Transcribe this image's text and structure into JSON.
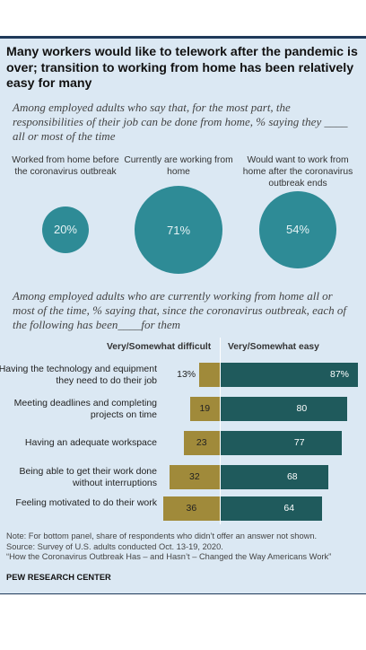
{
  "title": "Many workers would like to telework after the pandemic is over; transition to working from home has been relatively easy for many",
  "top_panel": {
    "subtitle": "Among employed adults who say that, for the most part, the responsibilities of their job can be done from home, % saying they ____ all or most of the time"
  },
  "bottom_panel": {
    "subtitle": "Among employed adults who are currently working from home all or most of the time, % saying that, since the coronavirus outbreak, each of the following has been____for them"
  },
  "chart_data": [
    {
      "type": "bubble",
      "categories": [
        "Worked from home before the coronavirus outbreak",
        "Currently are working from home",
        "Would want to work from home after the coronavirus outbreak ends"
      ],
      "values": [
        20,
        71,
        54
      ],
      "value_labels": [
        "20%",
        "71%",
        "54%"
      ],
      "unit": "%",
      "color": "#2e8b96"
    },
    {
      "type": "bar",
      "orientation": "horizontal-diverging",
      "categories": [
        "Having the technology and equipment they need to do their job",
        "Meeting deadlines and completing projects on time",
        "Having an adequate workspace",
        "Being able to get their work done without interruptions",
        "Feeling motivated to do their work"
      ],
      "series": [
        {
          "name": "Very/Somewhat difficult",
          "values": [
            13,
            19,
            23,
            32,
            36
          ],
          "labels": [
            "13%",
            "19",
            "23",
            "32",
            "36"
          ],
          "color": "#a08a3a"
        },
        {
          "name": "Very/Somewhat easy",
          "values": [
            87,
            80,
            77,
            68,
            64
          ],
          "labels": [
            "87%",
            "80",
            "77",
            "68",
            "64"
          ],
          "color": "#1f5a5c"
        }
      ],
      "legend": "top"
    }
  ],
  "notes": {
    "note": "Note: For bottom panel, share of respondents who didn’t offer an answer not shown.",
    "source": "Source: Survey of U.S. adults conducted Oct. 13-19, 2020.",
    "report": "“How the Coronavirus Outbreak Has – and Hasn’t – Changed the Way Americans Work”",
    "org": "PEW RESEARCH CENTER"
  },
  "colors": {
    "panel_bg": "#dbe8f3",
    "rule": "#1f3a5a"
  }
}
